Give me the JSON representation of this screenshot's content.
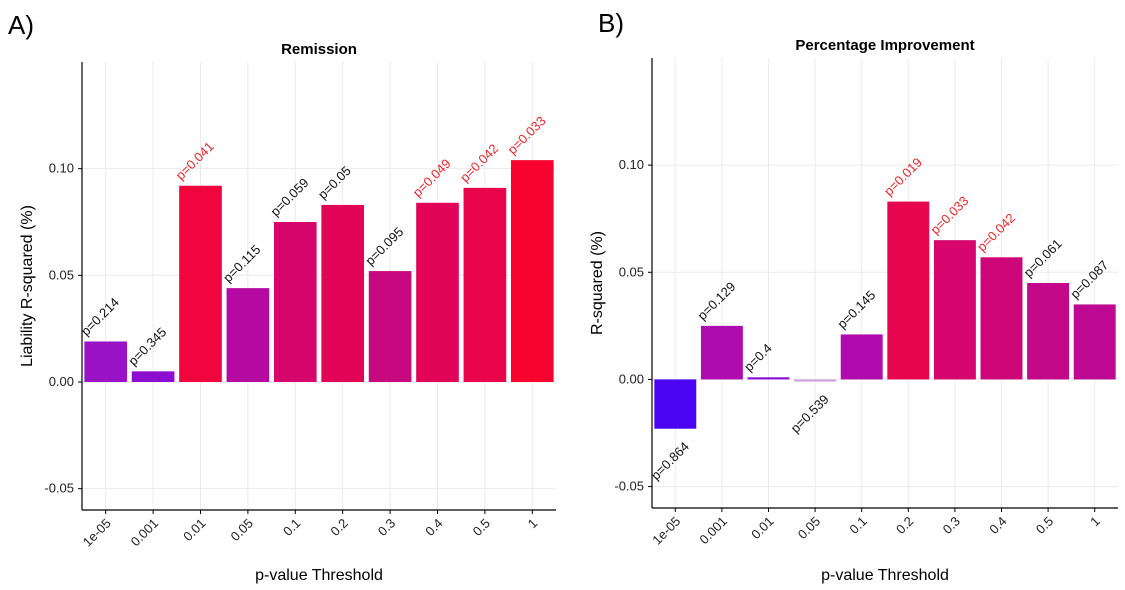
{
  "panels": {
    "a": {
      "letter": "A)"
    },
    "b": {
      "letter": "B)"
    }
  },
  "colors": {
    "significant_label": "#e8242d",
    "normal_label": "#111111",
    "grid": "#ebebeb",
    "axis": "#000000"
  },
  "chart_data": [
    {
      "type": "bar",
      "title": "Remission",
      "xlabel": "p-value Threshold",
      "ylabel": "Liability R-squared (%)",
      "categories": [
        "1e-05",
        "0.001",
        "0.01",
        "0.05",
        "0.1",
        "0.2",
        "0.3",
        "0.4",
        "0.5",
        "1"
      ],
      "values": [
        0.019,
        0.005,
        0.092,
        0.044,
        0.075,
        0.083,
        0.052,
        0.084,
        0.091,
        0.104
      ],
      "colors": [
        "#9b13c6",
        "#8c0fd0",
        "#f0053e",
        "#b50aa2",
        "#d7066d",
        "#e20557",
        "#c8087f",
        "#e20557",
        "#ea044b",
        "#f80330"
      ],
      "p_labels": [
        "p=0.214",
        "p=0.345",
        "p=0.041",
        "p=0.115",
        "p=0.059",
        "p=0.05",
        "p=0.095",
        "p=0.049",
        "p=0.042",
        "p=0.033"
      ],
      "significant": [
        false,
        false,
        true,
        false,
        false,
        false,
        false,
        true,
        true,
        true
      ],
      "ylim": [
        -0.06,
        0.15
      ],
      "yticks": [
        -0.05,
        0.0,
        0.05,
        0.1
      ],
      "ytick_labels": [
        "-0.05",
        "0.00",
        "0.05",
        "0.10"
      ],
      "grid": true
    },
    {
      "type": "bar",
      "title": "Percentage Improvement",
      "xlabel": "p-value Threshold",
      "ylabel": "R-squared (%)",
      "categories": [
        "1e-05",
        "0.001",
        "0.01",
        "0.05",
        "0.1",
        "0.2",
        "0.3",
        "0.4",
        "0.5",
        "1"
      ],
      "values": [
        -0.023,
        0.025,
        0.001,
        -0.001,
        0.021,
        0.083,
        0.065,
        0.057,
        0.045,
        0.035
      ],
      "colors": [
        "#4a06f2",
        "#b00bb0",
        "#8a10d4",
        "#cfa0e0",
        "#b10aae",
        "#e6054f",
        "#d6066e",
        "#ce0779",
        "#c30889",
        "#be0a92"
      ],
      "p_labels": [
        "p=0.864",
        "p=0.129",
        "p=0.4",
        "p=0.539",
        "p=0.145",
        "p=0.019",
        "p=0.033",
        "p=0.042",
        "p=0.061",
        "p=0.087"
      ],
      "significant": [
        false,
        false,
        false,
        false,
        false,
        true,
        true,
        true,
        false,
        false
      ],
      "ylim": [
        -0.06,
        0.15
      ],
      "yticks": [
        -0.05,
        0.0,
        0.05,
        0.1
      ],
      "ytick_labels": [
        "-0.05",
        "0.00",
        "0.05",
        "0.10"
      ],
      "grid": true
    }
  ]
}
